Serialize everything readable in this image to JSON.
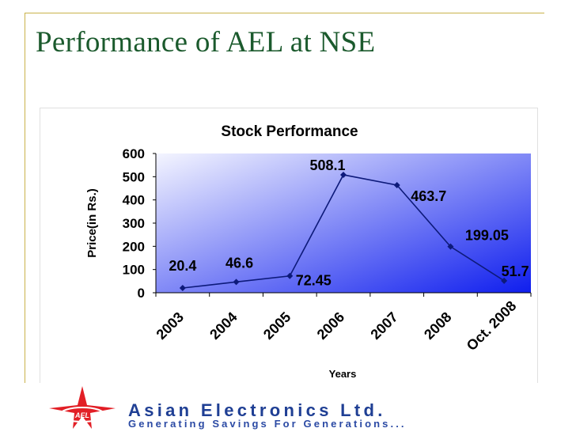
{
  "slide": {
    "title": "Performance of AEL at NSE"
  },
  "chart_data": {
    "type": "line",
    "title": "Stock Performance",
    "xlabel": "Years",
    "ylabel": "Price(in Rs.)",
    "categories": [
      "2003",
      "2004",
      "2005",
      "2006",
      "2007",
      "2008",
      "Oct. 2008"
    ],
    "values": [
      20.4,
      46.6,
      72.45,
      508.1,
      463.7,
      199.05,
      51.7
    ],
    "data_labels": [
      "20.4",
      "46.6",
      "72.45",
      "508.1",
      "463.7",
      "199.05",
      "51.7"
    ],
    "ylim": [
      0,
      600
    ],
    "yticks": [
      0,
      100,
      200,
      300,
      400,
      500,
      600
    ],
    "grid": false,
    "legend": "none",
    "colors": {
      "line": "#0d1a7a",
      "plot_gradient_start": "#f4f5ff",
      "plot_gradient_end": "#0f1eee",
      "text": "#000000"
    }
  },
  "footer": {
    "company": "Asian Electronics Ltd.",
    "tagline": "Generating Savings For Generations...",
    "logo_text": "AEL",
    "logo_icon": "red-star-logo-icon"
  }
}
